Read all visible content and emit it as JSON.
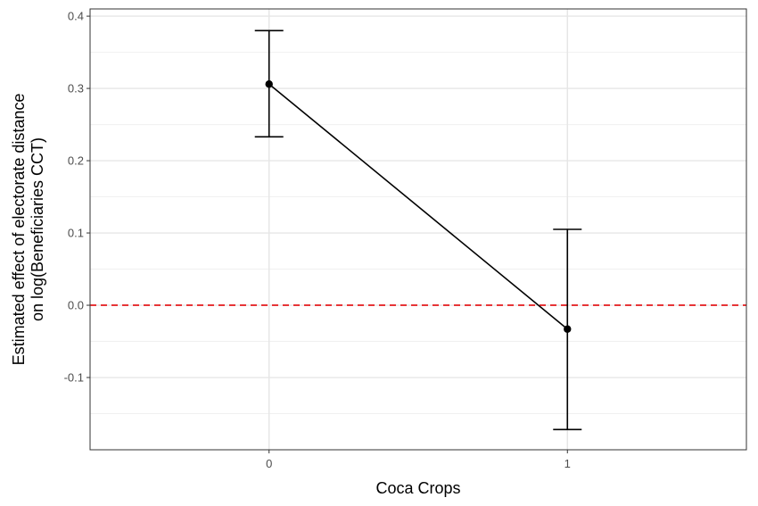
{
  "chart_data": {
    "type": "line",
    "xlabel": "Coca Crops",
    "ylabel_lines": [
      "Estimated effect of electorate distance",
      "on log(Beneficiaries CCT)"
    ],
    "categories": [
      "0",
      "1"
    ],
    "xlim": [
      -0.6,
      1.6
    ],
    "ylim": [
      -0.2,
      0.41
    ],
    "y_ticks": [
      0.4,
      0.3,
      0.2,
      0.1,
      0.0,
      -0.1
    ],
    "y_tick_labels": [
      "0.4",
      "0.3",
      "0.2",
      "0.1",
      "0.0",
      "-0.1"
    ],
    "y_minor_ticks": [
      0.35,
      0.25,
      0.15,
      0.05,
      -0.05,
      -0.15
    ],
    "series": [
      {
        "points": [
          {
            "x": 0,
            "y": 0.306,
            "lower": 0.233,
            "upper": 0.38
          },
          {
            "x": 1,
            "y": -0.033,
            "lower": -0.172,
            "upper": 0.105
          }
        ],
        "color": "#000000"
      }
    ],
    "reference_line": {
      "y": 0.0,
      "color": "#e41a1c",
      "style": "dashed"
    },
    "grid": true,
    "legend": "none"
  }
}
